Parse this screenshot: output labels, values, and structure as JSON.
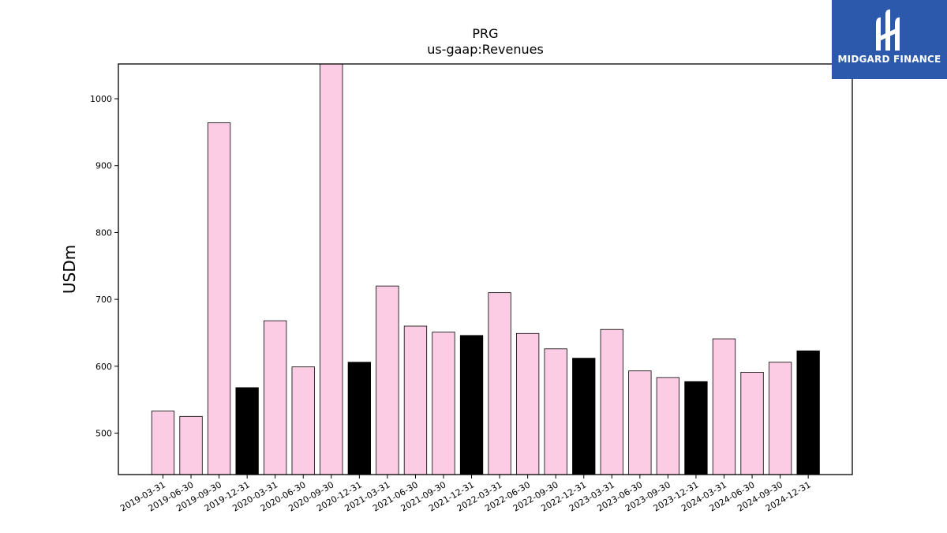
{
  "logo": {
    "text": "MIDGARD FINANCE"
  },
  "chart_data": {
    "type": "bar",
    "title": "PRG",
    "subtitle": "us-gaap:Revenues",
    "xlabel": "",
    "ylabel": "USDm",
    "ylim": [
      438,
      1052
    ],
    "yticks": [
      500,
      600,
      700,
      800,
      900,
      1000
    ],
    "grid": false,
    "categories": [
      "2019-03-31",
      "2019-06-30",
      "2019-09-30",
      "2019-12-31",
      "2020-03-31",
      "2020-06-30",
      "2020-09-30",
      "2020-12-31",
      "2021-03-31",
      "2021-06-30",
      "2021-09-30",
      "2021-12-31",
      "2022-03-31",
      "2022-06-30",
      "2022-09-30",
      "2022-12-31",
      "2023-03-31",
      "2023-06-30",
      "2023-09-30",
      "2023-12-31",
      "2024-03-31",
      "2024-06-30",
      "2024-09-30",
      "2024-12-31"
    ],
    "values": [
      533,
      525,
      964,
      568,
      668,
      599,
      1055,
      606,
      720,
      660,
      651,
      646,
      710,
      649,
      626,
      612,
      655,
      593,
      583,
      577,
      641,
      591,
      606,
      623
    ],
    "colors": [
      "#fccce4",
      "#fccce4",
      "#fccce4",
      "#000000",
      "#fccce4",
      "#fccce4",
      "#fccce4",
      "#000000",
      "#fccce4",
      "#fccce4",
      "#fccce4",
      "#000000",
      "#fccce4",
      "#fccce4",
      "#fccce4",
      "#000000",
      "#fccce4",
      "#fccce4",
      "#fccce4",
      "#000000",
      "#fccce4",
      "#fccce4",
      "#fccce4",
      "#000000"
    ]
  }
}
